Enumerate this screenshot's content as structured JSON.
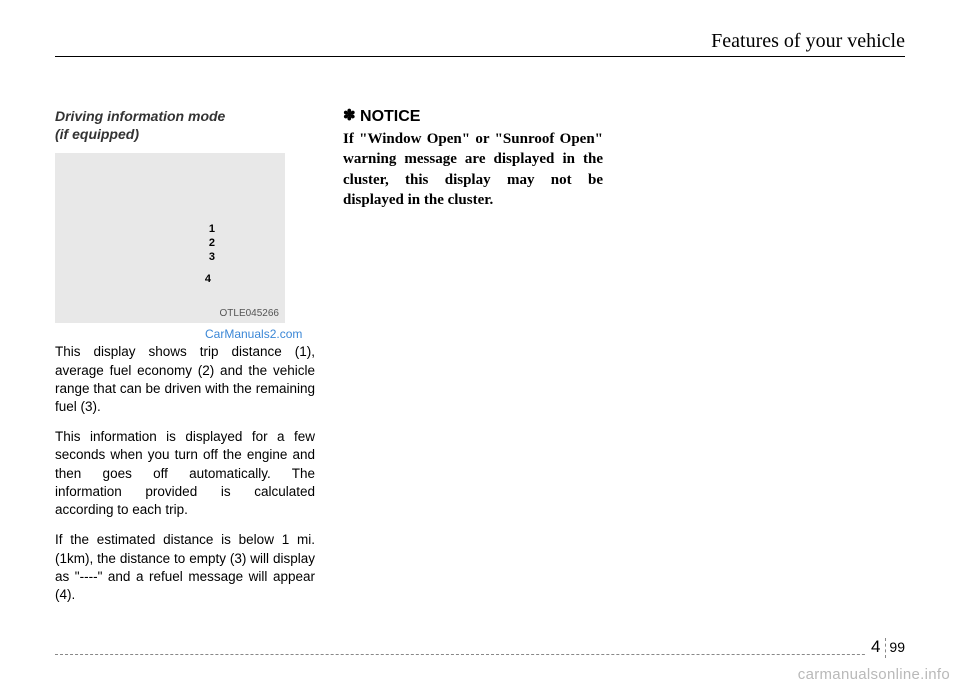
{
  "header": {
    "title": "Features of your vehicle"
  },
  "col1": {
    "subhead": "Driving information mode\n(if equipped)",
    "figure": {
      "label1": "1",
      "label2": "2",
      "label3": "3",
      "label4": "4",
      "code": "OTLE045266"
    },
    "watermark": "CarManuals2.com",
    "p1": "This display shows trip distance (1), average fuel economy (2) and the vehicle range that can be driven with the remaining fuel (3).",
    "p2": "This information is displayed for a few seconds when you turn off the engine and then goes off automatically. The information provided is calculated according to each trip.",
    "p3": "If the estimated distance is below 1 mi. (1km), the distance to empty (3) will display as \"----\" and a refuel message will appear (4)."
  },
  "col2": {
    "notice_symbol": "✽",
    "notice_label": "NOTICE",
    "notice_body": "If \"Window Open\" or \"Sunroof Open\" warning message are displayed in the cluster, this display may not be displayed in the cluster."
  },
  "footer": {
    "section": "4",
    "page": "99",
    "site": "carmanualsonline.info"
  }
}
